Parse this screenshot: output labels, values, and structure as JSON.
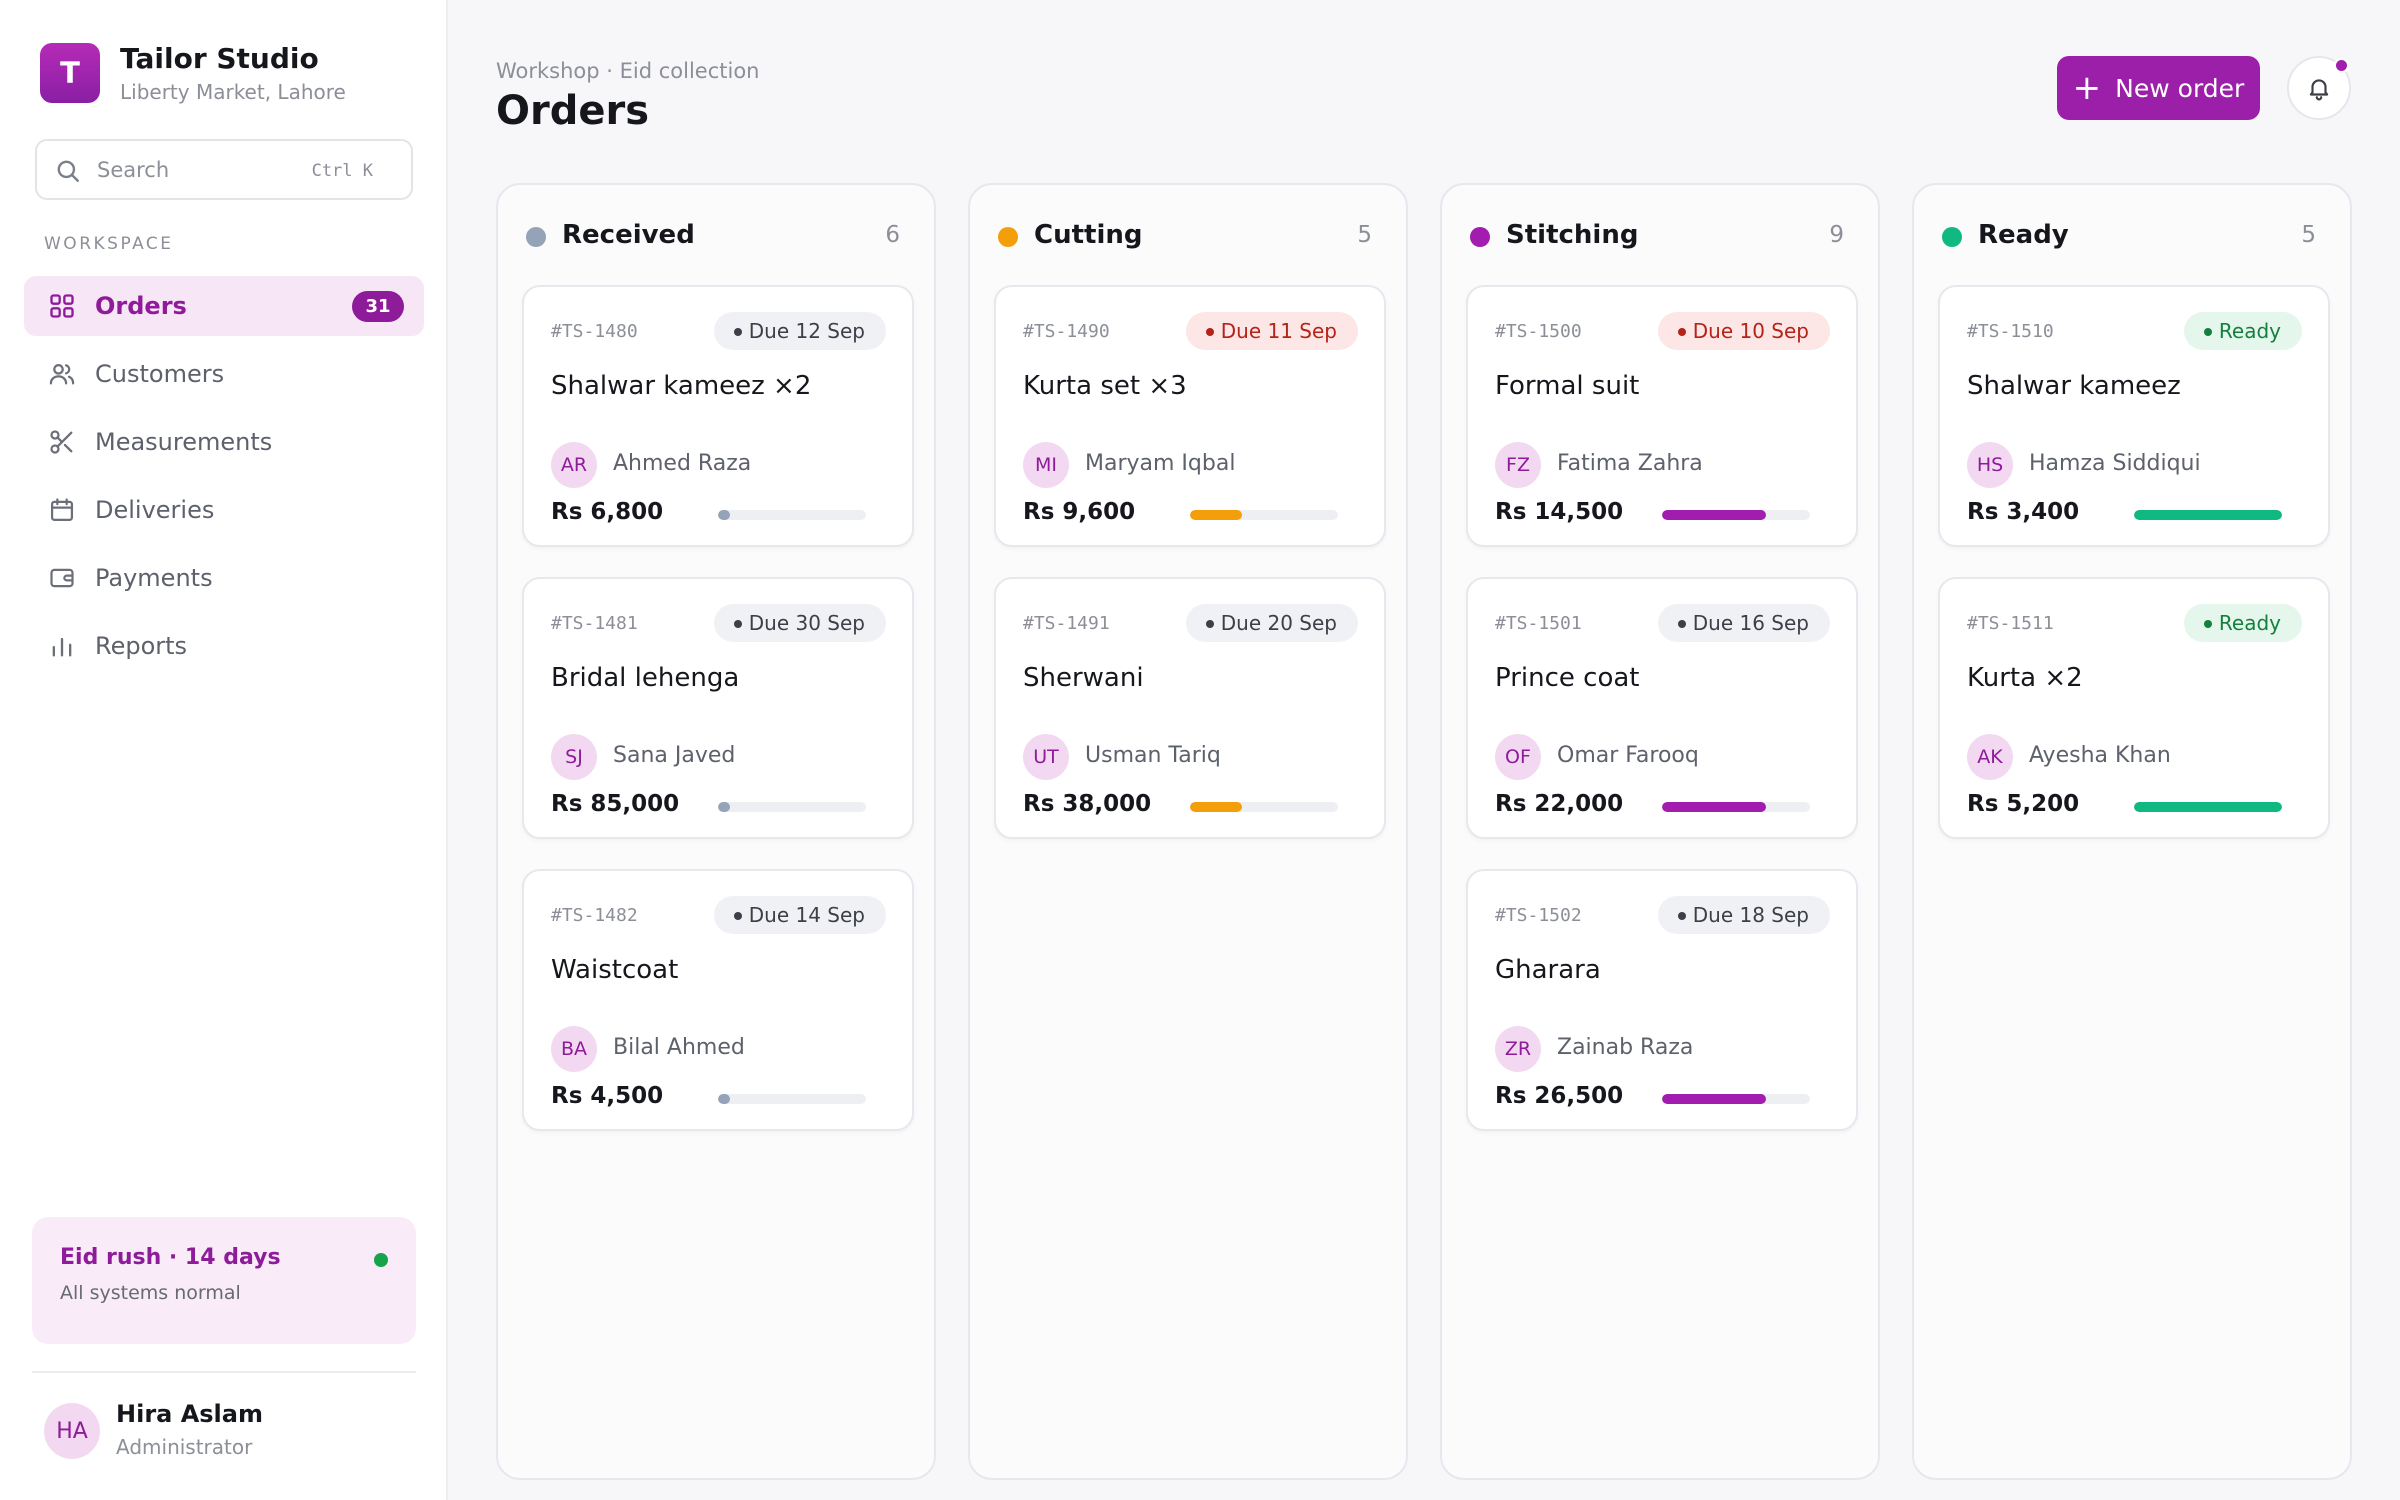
{
  "sidebar": {
    "brand": {
      "logo_letter": "T",
      "name": "Tailor Studio",
      "location": "Liberty Market, Lahore"
    },
    "search": {
      "placeholder": "Search",
      "shortcut": "Ctrl K"
    },
    "section_label": "WORKSPACE",
    "nav": [
      {
        "label": "Orders",
        "icon": "grid-icon",
        "active": true,
        "badge": "31"
      },
      {
        "label": "Customers",
        "icon": "users-icon",
        "active": false
      },
      {
        "label": "Measurements",
        "icon": "scissors-icon",
        "active": false
      },
      {
        "label": "Deliveries",
        "icon": "calendar-icon",
        "active": false
      },
      {
        "label": "Payments",
        "icon": "wallet-icon",
        "active": false
      },
      {
        "label": "Reports",
        "icon": "bar-chart-icon",
        "active": false
      }
    ],
    "status_card": {
      "title": "Eid rush · 14 days",
      "subtitle": "All systems normal",
      "status_color": "#16a34a"
    },
    "user": {
      "initials": "HA",
      "name": "Hira Aslam",
      "role": "Administrator"
    }
  },
  "header": {
    "breadcrumb": "Workshop · Eid collection",
    "title": "Orders",
    "new_order_label": "New order",
    "notifications_unread": true
  },
  "colors": {
    "accent": "#9b1fa8",
    "received": "#94a3b8",
    "cutting": "#f59e0b",
    "stitching": "#a21caf",
    "ready": "#10b981"
  },
  "columns": [
    {
      "title": "Received",
      "count": "6",
      "dot_color": "#94a3b8",
      "cards": [
        {
          "id": "#TS-1480",
          "due": "Due 12 Sep",
          "due_status": "normal",
          "title": "Shalwar kameez ×2",
          "initials": "AR",
          "customer": "Ahmed Raza",
          "price": "Rs 6,800",
          "progress": 0.08,
          "progress_color": "#94a3b8"
        },
        {
          "id": "#TS-1481",
          "due": "Due 30 Sep",
          "due_status": "normal",
          "title": "Bridal lehenga",
          "initials": "SJ",
          "customer": "Sana Javed",
          "price": "Rs 85,000",
          "progress": 0.08,
          "progress_color": "#94a3b8"
        },
        {
          "id": "#TS-1482",
          "due": "Due 14 Sep",
          "due_status": "normal",
          "title": "Waistcoat",
          "initials": "BA",
          "customer": "Bilal Ahmed",
          "price": "Rs 4,500",
          "progress": 0.08,
          "progress_color": "#94a3b8"
        }
      ]
    },
    {
      "title": "Cutting",
      "count": "5",
      "dot_color": "#f59e0b",
      "cards": [
        {
          "id": "#TS-1490",
          "due": "Due 11 Sep",
          "due_status": "urgent",
          "title": "Kurta set ×3",
          "initials": "MI",
          "customer": "Maryam Iqbal",
          "price": "Rs 9,600",
          "progress": 0.35,
          "progress_color": "#f59e0b"
        },
        {
          "id": "#TS-1491",
          "due": "Due 20 Sep",
          "due_status": "normal",
          "title": "Sherwani",
          "initials": "UT",
          "customer": "Usman Tariq",
          "price": "Rs 38,000",
          "progress": 0.35,
          "progress_color": "#f59e0b"
        }
      ]
    },
    {
      "title": "Stitching",
      "count": "9",
      "dot_color": "#a21caf",
      "cards": [
        {
          "id": "#TS-1500",
          "due": "Due 10 Sep",
          "due_status": "urgent",
          "title": "Formal suit",
          "initials": "FZ",
          "customer": "Fatima Zahra",
          "price": "Rs 14,500",
          "progress": 0.7,
          "progress_color": "#a21caf"
        },
        {
          "id": "#TS-1501",
          "due": "Due 16 Sep",
          "due_status": "normal",
          "title": "Prince coat",
          "initials": "OF",
          "customer": "Omar Farooq",
          "price": "Rs 22,000",
          "progress": 0.7,
          "progress_color": "#a21caf"
        },
        {
          "id": "#TS-1502",
          "due": "Due 18 Sep",
          "due_status": "normal",
          "title": "Gharara",
          "initials": "ZR",
          "customer": "Zainab Raza",
          "price": "Rs 26,500",
          "progress": 0.7,
          "progress_color": "#a21caf"
        }
      ]
    },
    {
      "title": "Ready",
      "count": "5",
      "dot_color": "#10b981",
      "cards": [
        {
          "id": "#TS-1510",
          "due": "Ready",
          "due_status": "ready",
          "title": "Shalwar kameez",
          "initials": "HS",
          "customer": "Hamza Siddiqui",
          "price": "Rs 3,400",
          "progress": 1.0,
          "progress_color": "#10b981"
        },
        {
          "id": "#TS-1511",
          "due": "Ready",
          "due_status": "ready",
          "title": "Kurta ×2",
          "initials": "AK",
          "customer": "Ayesha Khan",
          "price": "Rs 5,200",
          "progress": 1.0,
          "progress_color": "#10b981"
        }
      ]
    }
  ]
}
